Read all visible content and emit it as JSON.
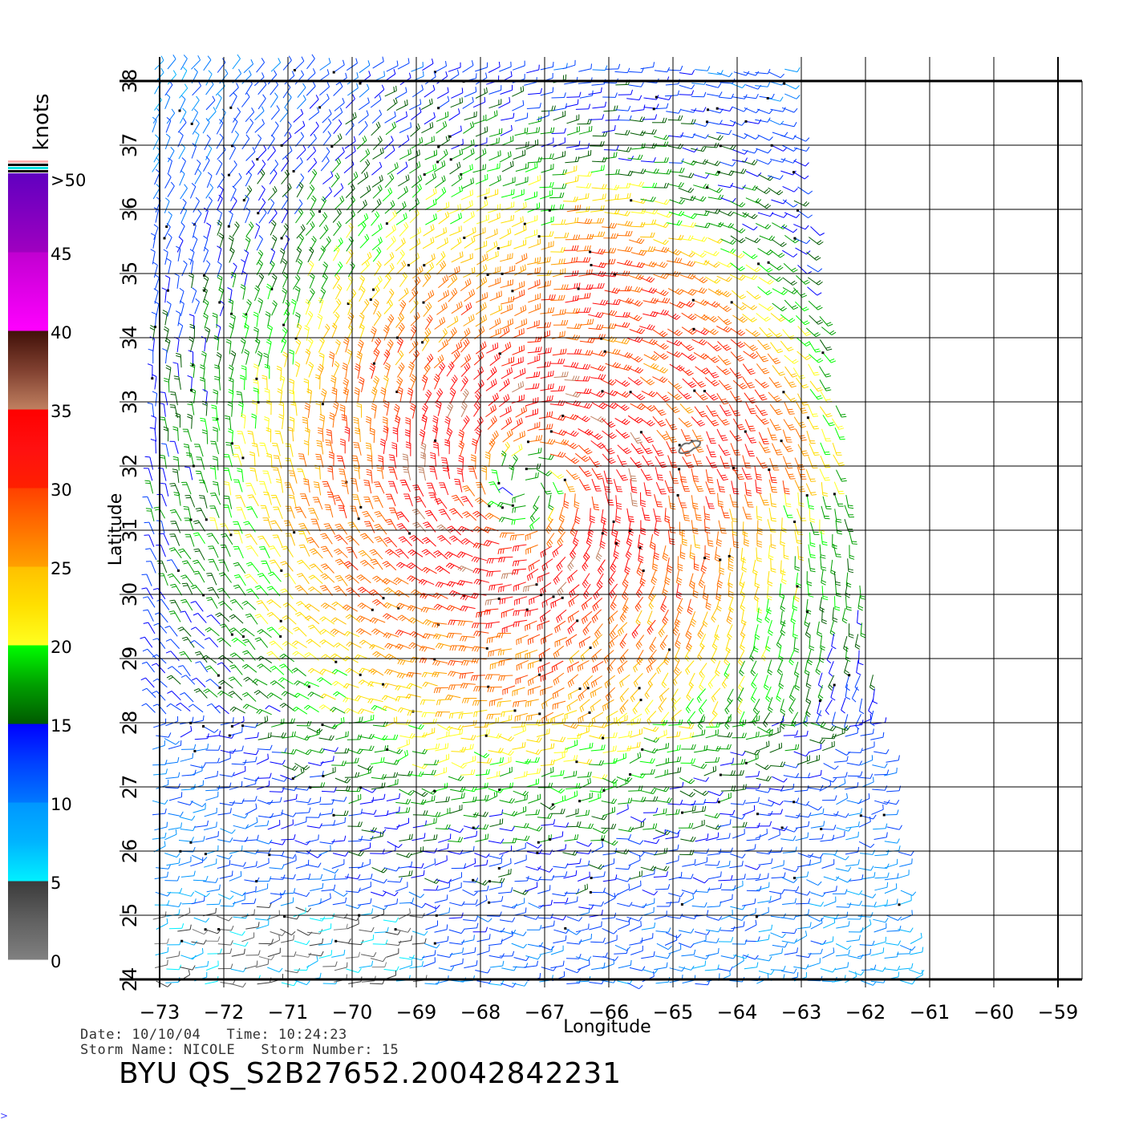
{
  "legend": {
    "unit_label": "knots",
    "bands": [
      {
        "min": 0,
        "max": 5,
        "colors": [
          "#808080",
          "#606060",
          "#3a3a3a"
        ]
      },
      {
        "min": 5,
        "max": 10,
        "colors": [
          "#00f0ff",
          "#00b4ff",
          "#0096ff"
        ]
      },
      {
        "min": 10,
        "max": 15,
        "colors": [
          "#0078ff",
          "#0040ff",
          "#0000ff"
        ]
      },
      {
        "min": 15,
        "max": 20,
        "colors": [
          "#005a00",
          "#00a000",
          "#00ff00"
        ]
      },
      {
        "min": 20,
        "max": 25,
        "colors": [
          "#ffff20",
          "#ffe000",
          "#ffc000"
        ]
      },
      {
        "min": 25,
        "max": 30,
        "colors": [
          "#ffa000",
          "#ff7000",
          "#ff4000"
        ]
      },
      {
        "min": 30,
        "max": 35,
        "colors": [
          "#ff2000",
          "#ff1010",
          "#ff0000"
        ]
      },
      {
        "min": 35,
        "max": 40,
        "colors": [
          "#c08060",
          "#804030",
          "#401008"
        ]
      },
      {
        "min": 40,
        "max": 45,
        "colors": [
          "#ff00ff",
          "#e000e8",
          "#c000d0"
        ]
      },
      {
        "min": 45,
        "max": 50,
        "colors": [
          "#a000c0",
          "#8000c0",
          "#6000c0"
        ]
      }
    ],
    "tick_labels": [
      "0",
      "5",
      "10",
      "15",
      "20",
      "25",
      "30",
      "35",
      "40",
      "45",
      ">50"
    ],
    "top_stripe_colors": [
      "#ffb0b0",
      "#000000",
      "#00e0e0",
      "#000000"
    ]
  },
  "axes": {
    "xlabel": "Longitude",
    "ylabel": "Latitude",
    "lon_ticks": [
      -73,
      -72,
      -71,
      -70,
      -69,
      -68,
      -67,
      -66,
      -65,
      -64,
      -63,
      -62,
      -61,
      -60,
      -59
    ],
    "lat_ticks": [
      24,
      25,
      26,
      27,
      28,
      29,
      30,
      31,
      32,
      33,
      34,
      35,
      36,
      37,
      38
    ],
    "lon_range": [
      -73,
      -58.6
    ],
    "lat_range": [
      24,
      38
    ],
    "grid": true
  },
  "storm": {
    "center_lon": -67.3,
    "center_lat": 31.7,
    "pass_west_lon_top": -73.0,
    "pass_west_lon_bottom": -73.0,
    "pass_east_lon_top": -63.2,
    "pass_east_lon_bottom": -61.2
  },
  "land_feature": {
    "name": "Bermuda",
    "lon": -64.75,
    "lat": 32.3
  },
  "info": {
    "line1": "Date: 10/10/04   Time: 10:24:23",
    "line2": "Storm Name: NICOLE   Storm Number: 15",
    "product_id": "BYU QS_S2B27652.20042842231"
  },
  "corner_mark": ">"
}
